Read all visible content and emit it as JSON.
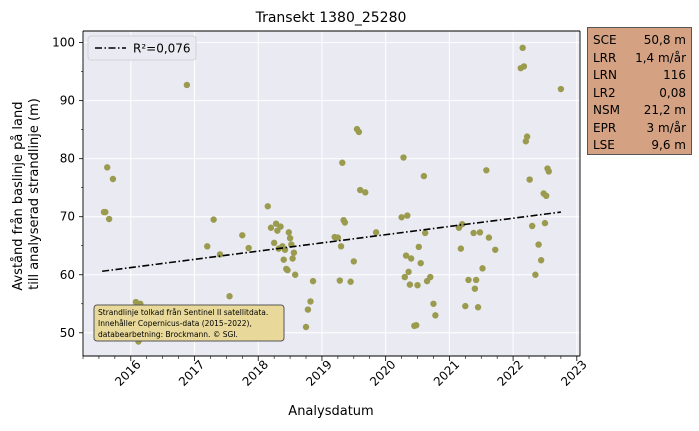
{
  "chart_data": {
    "type": "scatter",
    "title": "Transekt 1380_25280",
    "xlabel": "Analysdatum",
    "ylabel": [
      "Avstånd från baslinje på land",
      "till analyserad strandlinje (m)"
    ],
    "x_ticks": [
      "2016",
      "2017",
      "2018",
      "2019",
      "2020",
      "2021",
      "2022",
      "2023"
    ],
    "y_ticks": [
      50,
      60,
      70,
      80,
      90,
      100
    ],
    "xlim": [
      2015.25,
      2023.05
    ],
    "ylim": [
      46,
      102
    ],
    "grid": true,
    "legend": {
      "placement": "top-left",
      "label": "R²=0,076"
    },
    "trend_line": {
      "x": [
        2015.55,
        2022.75
      ],
      "y": [
        60.6,
        70.8
      ],
      "style": "dash-dot"
    },
    "point_color": "#9b9b4f",
    "line_color": "#000000",
    "points": [
      [
        2015.58,
        70.8
      ],
      [
        2015.6,
        70.8
      ],
      [
        2015.63,
        78.5
      ],
      [
        2015.66,
        69.6
      ],
      [
        2015.72,
        76.5
      ],
      [
        2016.08,
        55.3
      ],
      [
        2016.1,
        53.0
      ],
      [
        2016.12,
        48.5
      ],
      [
        2016.15,
        55.0
      ],
      [
        2016.2,
        51.5
      ],
      [
        2016.25,
        52.5
      ],
      [
        2016.35,
        49.5
      ],
      [
        2016.88,
        92.7
      ],
      [
        2017.2,
        64.9
      ],
      [
        2017.3,
        69.5
      ],
      [
        2017.4,
        63.5
      ],
      [
        2017.55,
        56.3
      ],
      [
        2017.75,
        66.8
      ],
      [
        2017.85,
        64.6
      ],
      [
        2018.15,
        71.8
      ],
      [
        2018.2,
        68.1
      ],
      [
        2018.25,
        65.5
      ],
      [
        2018.28,
        68.8
      ],
      [
        2018.3,
        67.6
      ],
      [
        2018.32,
        64.5
      ],
      [
        2018.35,
        68.3
      ],
      [
        2018.38,
        64.9
      ],
      [
        2018.4,
        62.6
      ],
      [
        2018.42,
        64.3
      ],
      [
        2018.44,
        61.0
      ],
      [
        2018.46,
        60.8
      ],
      [
        2018.48,
        67.3
      ],
      [
        2018.5,
        66.3
      ],
      [
        2018.52,
        65.2
      ],
      [
        2018.54,
        62.8
      ],
      [
        2018.56,
        63.8
      ],
      [
        2018.58,
        60.0
      ],
      [
        2018.75,
        51.0
      ],
      [
        2018.78,
        54.0
      ],
      [
        2018.82,
        55.4
      ],
      [
        2018.86,
        58.9
      ],
      [
        2019.2,
        66.5
      ],
      [
        2019.25,
        66.4
      ],
      [
        2019.28,
        59.0
      ],
      [
        2019.3,
        64.9
      ],
      [
        2019.32,
        79.3
      ],
      [
        2019.34,
        69.4
      ],
      [
        2019.36,
        69.0
      ],
      [
        2019.45,
        58.8
      ],
      [
        2019.5,
        62.3
      ],
      [
        2019.55,
        85.1
      ],
      [
        2019.58,
        84.6
      ],
      [
        2019.6,
        74.6
      ],
      [
        2019.68,
        74.2
      ],
      [
        2019.85,
        67.3
      ],
      [
        2020.25,
        69.9
      ],
      [
        2020.28,
        80.2
      ],
      [
        2020.3,
        59.6
      ],
      [
        2020.32,
        63.3
      ],
      [
        2020.34,
        70.2
      ],
      [
        2020.36,
        60.5
      ],
      [
        2020.38,
        58.3
      ],
      [
        2020.4,
        62.8
      ],
      [
        2020.45,
        51.2
      ],
      [
        2020.48,
        51.3
      ],
      [
        2020.5,
        58.2
      ],
      [
        2020.52,
        64.8
      ],
      [
        2020.55,
        62.0
      ],
      [
        2020.6,
        77.0
      ],
      [
        2020.62,
        67.2
      ],
      [
        2020.65,
        58.9
      ],
      [
        2020.7,
        59.6
      ],
      [
        2020.75,
        55.0
      ],
      [
        2020.78,
        53.0
      ],
      [
        2021.15,
        68.1
      ],
      [
        2021.18,
        64.5
      ],
      [
        2021.2,
        68.7
      ],
      [
        2021.25,
        54.6
      ],
      [
        2021.3,
        59.1
      ],
      [
        2021.38,
        67.2
      ],
      [
        2021.4,
        57.6
      ],
      [
        2021.42,
        59.1
      ],
      [
        2021.45,
        54.4
      ],
      [
        2021.48,
        67.3
      ],
      [
        2021.52,
        61.1
      ],
      [
        2021.58,
        78.0
      ],
      [
        2021.62,
        66.4
      ],
      [
        2021.72,
        64.3
      ],
      [
        2022.12,
        95.6
      ],
      [
        2022.15,
        99.1
      ],
      [
        2022.17,
        95.9
      ],
      [
        2022.2,
        83.0
      ],
      [
        2022.22,
        83.8
      ],
      [
        2022.26,
        76.4
      ],
      [
        2022.3,
        68.4
      ],
      [
        2022.35,
        60.0
      ],
      [
        2022.4,
        65.2
      ],
      [
        2022.44,
        62.5
      ],
      [
        2022.48,
        74.0
      ],
      [
        2022.5,
        68.9
      ],
      [
        2022.52,
        73.6
      ],
      [
        2022.54,
        78.3
      ],
      [
        2022.56,
        77.8
      ],
      [
        2022.75,
        92.0
      ]
    ],
    "annotation": [
      "Strandlinje tolkad från Sentinel II satellitdata.",
      "Innehåller Copernicus-data (2015–2022),",
      "databearbetning: Brockmann. © SGI."
    ]
  },
  "stats": [
    {
      "key": "SCE",
      "value": "50,8 m"
    },
    {
      "key": "LRR",
      "value": "1,4 m/år"
    },
    {
      "key": "LRN",
      "value": "116"
    },
    {
      "key": "LR2",
      "value": "0,08"
    },
    {
      "key": "NSM",
      "value": "21,2 m"
    },
    {
      "key": "EPR",
      "value": "3 m/år"
    },
    {
      "key": "LSE",
      "value": "9,6 m"
    }
  ]
}
